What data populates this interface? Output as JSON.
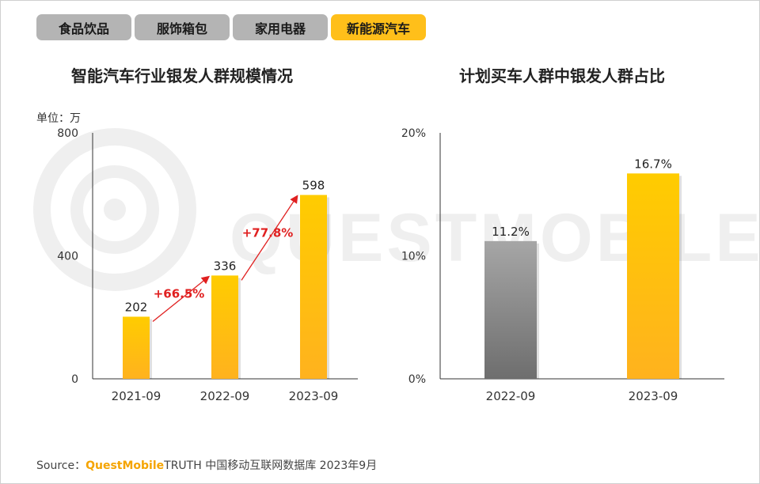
{
  "tabs": [
    {
      "label": "食品饮品",
      "active": false
    },
    {
      "label": "服饰箱包",
      "active": false
    },
    {
      "label": "家用电器",
      "active": false
    },
    {
      "label": "新能源汽车",
      "active": true
    }
  ],
  "watermark": "QUESTMOBILE",
  "unit": "单位：万",
  "colors": {
    "accent": "#ffbf1a",
    "bar_yellow_top": "#ffcc00",
    "bar_yellow_bottom": "#ffb21e",
    "bar_gray_top": "#a6a6a6",
    "bar_gray_bottom": "#6e6e6e",
    "growth": "#e02020"
  },
  "chart_data": [
    {
      "type": "bar",
      "title": "智能汽车行业银发人群规模情况",
      "categories": [
        "2021-09",
        "2022-09",
        "2023-09"
      ],
      "values": [
        202,
        336,
        598
      ],
      "value_labels": [
        "202",
        "336",
        "598"
      ],
      "ylim": [
        0,
        800
      ],
      "yticks": [
        0,
        400,
        800
      ],
      "ytick_labels": [
        "0",
        "400",
        "800"
      ],
      "growth": [
        {
          "from": 0,
          "to": 1,
          "label": "+66.5%"
        },
        {
          "from": 1,
          "to": 2,
          "label": "+77.8%"
        }
      ],
      "grid": false
    },
    {
      "type": "bar",
      "title": "计划买车人群中银发人群占比",
      "categories": [
        "2022-09",
        "2023-09"
      ],
      "values": [
        11.2,
        16.7
      ],
      "value_labels": [
        "11.2%",
        "16.7%"
      ],
      "bar_styles": [
        "gray",
        "yellow"
      ],
      "ylim": [
        0,
        20
      ],
      "yticks": [
        0,
        10,
        20
      ],
      "ytick_labels": [
        "0%",
        "10%",
        "20%"
      ],
      "grid": false
    }
  ],
  "source": {
    "prefix": "Source：",
    "brand": "QuestMobile",
    "rest": "TRUTH 中国移动互联网数据库 2023年9月"
  }
}
